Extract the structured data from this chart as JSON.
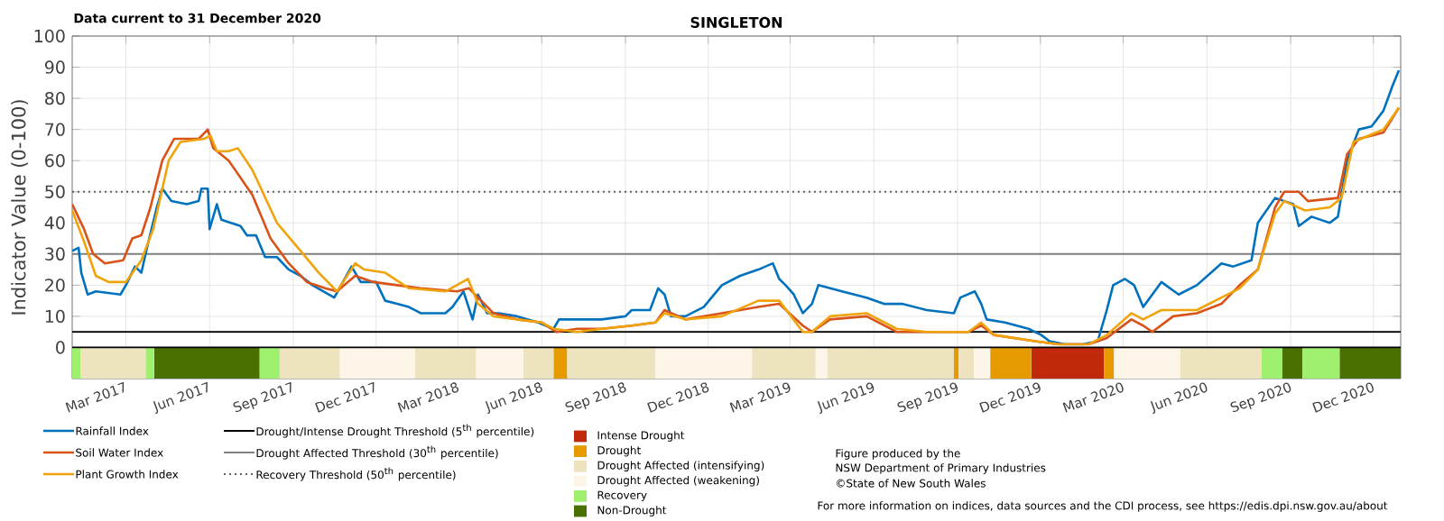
{
  "chart_data": {
    "type": "line",
    "title": "SINGLETON",
    "ylabel": "Indicator Value (0-100)",
    "xlim": [
      "2017-01-01",
      "2020-12-31"
    ],
    "ylim": [
      -10,
      100
    ],
    "xticks": [
      {
        "value": "2017-03-01",
        "label": "Mar 2017"
      },
      {
        "value": "2017-06-01",
        "label": "Jun 2017"
      },
      {
        "value": "2017-09-01",
        "label": "Sep 2017"
      },
      {
        "value": "2017-12-01",
        "label": "Dec 2017"
      },
      {
        "value": "2018-03-01",
        "label": "Mar 2018"
      },
      {
        "value": "2018-06-01",
        "label": "Jun 2018"
      },
      {
        "value": "2018-09-01",
        "label": "Sep 2018"
      },
      {
        "value": "2018-12-01",
        "label": "Dec 2018"
      },
      {
        "value": "2019-03-01",
        "label": "Mar 2019"
      },
      {
        "value": "2019-06-01",
        "label": "Jun 2019"
      },
      {
        "value": "2019-09-01",
        "label": "Sep 2019"
      },
      {
        "value": "2019-12-01",
        "label": "Dec 2019"
      },
      {
        "value": "2020-03-01",
        "label": "Mar 2020"
      },
      {
        "value": "2020-06-01",
        "label": "Jun 2020"
      },
      {
        "value": "2020-09-01",
        "label": "Sep 2020"
      },
      {
        "value": "2020-12-01",
        "label": "Dec 2020"
      }
    ],
    "yticks": [
      0,
      10,
      20,
      30,
      40,
      50,
      60,
      70,
      80,
      90,
      100
    ],
    "grid": true,
    "legend": "bottom",
    "marker": "none",
    "line_style": "solid",
    "series": [
      {
        "name": "Rainfall Index",
        "color": "#0072bd",
        "x": [
          "2017-01-01",
          "2017-01-08",
          "2017-01-11",
          "2017-01-18",
          "2017-01-27",
          "2017-02-23",
          "2017-03-01",
          "2017-03-11",
          "2017-03-18",
          "2017-03-25",
          "2017-04-04",
          "2017-04-10",
          "2017-04-20",
          "2017-05-07",
          "2017-05-20",
          "2017-05-23",
          "2017-05-30",
          "2017-06-01",
          "2017-06-09",
          "2017-06-14",
          "2017-07-05",
          "2017-07-12",
          "2017-07-22",
          "2017-08-01",
          "2017-08-14",
          "2017-08-27",
          "2017-09-09",
          "2017-09-22",
          "2017-10-16",
          "2017-11-04",
          "2017-11-14",
          "2017-12-01",
          "2017-12-11",
          "2017-12-24",
          "2018-01-06",
          "2018-01-19",
          "2018-02-15",
          "2018-02-23",
          "2018-03-07",
          "2018-03-17",
          "2018-03-23",
          "2018-04-02",
          "2018-04-15",
          "2018-05-05",
          "2018-05-28",
          "2018-06-14",
          "2018-06-20",
          "2018-07-10",
          "2018-08-06",
          "2018-09-01",
          "2018-09-08",
          "2018-09-28",
          "2018-10-07",
          "2018-10-14",
          "2018-10-21",
          "2018-11-06",
          "2018-11-26",
          "2018-12-16",
          "2019-01-05",
          "2019-01-25",
          "2019-02-10",
          "2019-02-17",
          "2019-02-24",
          "2019-03-05",
          "2019-03-15",
          "2019-03-25",
          "2019-04-01",
          "2019-04-27",
          "2019-05-24",
          "2019-06-12",
          "2019-07-02",
          "2019-07-29",
          "2019-08-28",
          "2019-09-04",
          "2019-09-20",
          "2019-09-27",
          "2019-10-03",
          "2019-10-23",
          "2019-11-18",
          "2019-12-02",
          "2019-12-11",
          "2019-12-28",
          "2020-01-17",
          "2020-02-02",
          "2020-02-12",
          "2020-02-19",
          "2020-03-03",
          "2020-03-13",
          "2020-03-23",
          "2020-04-12",
          "2020-05-01",
          "2020-05-21",
          "2020-06-17",
          "2020-06-30",
          "2020-07-20",
          "2020-07-27",
          "2020-08-15",
          "2020-09-04",
          "2020-09-10",
          "2020-09-24",
          "2020-10-14",
          "2020-10-23",
          "2020-11-02",
          "2020-11-15",
          "2020-11-29",
          "2020-12-12",
          "2020-12-22",
          "2020-12-29"
        ],
        "values": [
          31,
          32,
          24,
          17,
          18,
          17,
          20,
          26,
          24,
          33,
          45,
          51,
          47,
          46,
          47,
          51,
          51,
          38,
          46,
          41,
          39,
          36,
          36,
          29,
          29,
          25,
          23,
          20,
          16,
          26,
          21,
          21,
          15,
          14,
          13,
          11,
          11,
          13,
          18,
          9,
          17,
          11,
          11,
          10,
          8,
          6,
          9,
          9,
          9,
          10,
          12,
          12,
          19,
          17,
          10,
          10,
          13,
          20,
          23,
          25,
          27,
          22,
          20,
          17,
          11,
          14,
          20,
          18,
          16,
          14,
          14,
          12,
          11,
          16,
          18,
          14,
          9,
          8,
          6,
          4,
          2,
          1,
          1,
          2,
          12,
          20,
          22,
          20,
          13,
          21,
          17,
          20,
          27,
          26,
          28,
          40,
          48,
          46,
          39,
          42,
          40,
          42,
          60,
          70,
          71,
          76,
          84,
          89
        ]
      },
      {
        "name": "Soil Water Index",
        "color": "#d95319",
        "x": [
          "2017-01-01",
          "2017-01-14",
          "2017-01-24",
          "2017-02-06",
          "2017-02-26",
          "2017-03-08",
          "2017-03-18",
          "2017-03-28",
          "2017-04-10",
          "2017-04-23",
          "2017-05-20",
          "2017-05-30",
          "2017-06-05",
          "2017-06-22",
          "2017-07-18",
          "2017-08-07",
          "2017-08-27",
          "2017-09-16",
          "2017-10-06",
          "2017-10-19",
          "2017-11-08",
          "2017-11-28",
          "2017-12-24",
          "2018-01-19",
          "2018-02-28",
          "2018-03-13",
          "2018-03-23",
          "2018-04-09",
          "2018-05-05",
          "2018-06-01",
          "2018-06-17",
          "2018-07-10",
          "2018-08-06",
          "2018-09-08",
          "2018-10-04",
          "2018-10-14",
          "2018-11-06",
          "2018-12-16",
          "2019-01-25",
          "2019-02-17",
          "2019-03-15",
          "2019-03-25",
          "2019-04-14",
          "2019-05-24",
          "2019-06-26",
          "2019-07-29",
          "2019-09-13",
          "2019-09-27",
          "2019-10-11",
          "2019-11-25",
          "2019-12-21",
          "2020-01-23",
          "2020-02-12",
          "2020-03-10",
          "2020-03-23",
          "2020-04-02",
          "2020-04-25",
          "2020-05-21",
          "2020-06-17",
          "2020-07-07",
          "2020-07-27",
          "2020-08-15",
          "2020-08-25",
          "2020-09-10",
          "2020-09-20",
          "2020-10-23",
          "2020-11-02",
          "2020-11-15",
          "2020-12-12",
          "2020-12-29"
        ],
        "values": [
          46,
          38,
          30,
          27,
          28,
          35,
          36,
          45,
          60,
          67,
          67,
          70,
          64,
          60,
          49,
          35,
          27,
          21,
          19,
          18,
          23,
          21,
          20,
          19,
          18,
          19,
          16,
          11,
          9,
          8,
          5,
          6,
          6,
          7,
          8,
          12,
          9,
          11,
          13,
          14,
          7,
          5,
          9,
          10,
          5,
          5,
          5,
          7,
          4,
          2,
          1,
          1,
          3,
          9,
          7,
          5,
          10,
          11,
          14,
          20,
          25,
          45,
          50,
          50,
          47,
          48,
          62,
          67,
          69,
          77
        ]
      },
      {
        "name": "Plant Growth Index",
        "color": "#f0a30a",
        "x": [
          "2017-01-01",
          "2017-01-14",
          "2017-01-27",
          "2017-02-10",
          "2017-03-01",
          "2017-03-18",
          "2017-03-31",
          "2017-04-17",
          "2017-04-30",
          "2017-05-26",
          "2017-06-02",
          "2017-06-09",
          "2017-06-22",
          "2017-07-02",
          "2017-07-18",
          "2017-08-14",
          "2017-09-09",
          "2017-09-29",
          "2017-10-19",
          "2017-11-08",
          "2017-11-18",
          "2017-12-11",
          "2018-01-06",
          "2018-02-15",
          "2018-03-12",
          "2018-03-23",
          "2018-04-09",
          "2018-05-05",
          "2018-06-01",
          "2018-06-14",
          "2018-07-10",
          "2018-08-06",
          "2018-09-08",
          "2018-10-04",
          "2018-10-14",
          "2018-11-06",
          "2018-12-16",
          "2019-01-25",
          "2019-02-17",
          "2019-03-15",
          "2019-03-25",
          "2019-04-14",
          "2019-05-24",
          "2019-06-26",
          "2019-07-29",
          "2019-09-13",
          "2019-09-27",
          "2019-10-11",
          "2019-11-25",
          "2019-12-21",
          "2020-01-23",
          "2020-02-12",
          "2020-03-10",
          "2020-03-23",
          "2020-04-12",
          "2020-05-21",
          "2020-06-17",
          "2020-07-07",
          "2020-07-27",
          "2020-08-15",
          "2020-08-25",
          "2020-09-17",
          "2020-10-14",
          "2020-10-27",
          "2020-11-09",
          "2020-12-12",
          "2020-12-29"
        ],
        "values": [
          44,
          34,
          23,
          21,
          21,
          28,
          38,
          60,
          66,
          67,
          68,
          63,
          63,
          64,
          57,
          40,
          31,
          24,
          18,
          27,
          25,
          24,
          19,
          18,
          22,
          14,
          10,
          9,
          8,
          6,
          5,
          6,
          7,
          8,
          11,
          9,
          10,
          15,
          15,
          5,
          5,
          10,
          11,
          6,
          5,
          5,
          8,
          4,
          2,
          1,
          1,
          4,
          11,
          9,
          12,
          12,
          16,
          19,
          25,
          43,
          47,
          44,
          45,
          48,
          66,
          70,
          77
        ]
      }
    ],
    "ref_lines": [
      {
        "axis": "y",
        "value": 5,
        "label": "Drought/Intense Drought Threshold (5$^{th}$ percentile)",
        "color": "#000000",
        "line_style": "solid"
      },
      {
        "axis": "y",
        "value": 30,
        "label": "Drought Affected Threshold (30$^{th}$ percentile)",
        "color": "#808080",
        "line_style": "solid"
      },
      {
        "axis": "y",
        "value": 50,
        "label": "Recovery Threshold (50$^{th}$ percentile)",
        "color": "#606060",
        "line_style": "dotted"
      }
    ],
    "bands": [
      {
        "axis": "x",
        "from": "2019-11-21",
        "to": "2020-02-09",
        "label": "Intense Drought",
        "color": "#c0290a"
      },
      {
        "axis": "x",
        "from": "2018-06-14",
        "to": "2018-06-29",
        "label": "Drought",
        "color": "#e59a00"
      },
      {
        "axis": "x",
        "from": "2017-01-10",
        "to": "2017-03-23",
        "label": "Drought Affected (intensifying)",
        "color": "#ede3be"
      },
      {
        "axis": "x",
        "from": "2017-10-22",
        "to": "2018-01-13",
        "label": "Drought Affected (weakening)",
        "color": "#fdf6e8"
      },
      {
        "axis": "x",
        "from": "2017-01-01",
        "to": "2017-01-10",
        "label": "Recovery",
        "color": "#a0f070"
      },
      {
        "axis": "x",
        "from": "2017-04-01",
        "to": "2017-07-26",
        "label": "Non-Drought",
        "color": "#4a7000"
      },
      {
        "axis": "x",
        "from": "2017-03-23",
        "to": "2017-04-01",
        "color": "#a0f070"
      },
      {
        "axis": "x",
        "from": "2017-07-26",
        "to": "2017-08-17",
        "color": "#a0f070"
      },
      {
        "axis": "x",
        "from": "2017-08-17",
        "to": "2017-10-22",
        "color": "#ede3be"
      },
      {
        "axis": "x",
        "from": "2018-01-13",
        "to": "2018-03-21",
        "color": "#ede3be"
      },
      {
        "axis": "x",
        "from": "2018-03-21",
        "to": "2018-05-12",
        "color": "#fdf6e8"
      },
      {
        "axis": "x",
        "from": "2018-05-12",
        "to": "2018-06-14",
        "color": "#ede3be"
      },
      {
        "axis": "x",
        "from": "2018-06-29",
        "to": "2018-10-04",
        "color": "#ede3be"
      },
      {
        "axis": "x",
        "from": "2018-10-04",
        "to": "2019-01-18",
        "color": "#fdf6e8"
      },
      {
        "axis": "x",
        "from": "2019-01-18",
        "to": "2019-03-29",
        "color": "#ede3be"
      },
      {
        "axis": "x",
        "from": "2019-03-29",
        "to": "2019-04-11",
        "color": "#fdf6e8"
      },
      {
        "axis": "x",
        "from": "2019-04-11",
        "to": "2019-08-28",
        "color": "#ede3be"
      },
      {
        "axis": "x",
        "from": "2019-08-28",
        "to": "2019-09-02",
        "color": "#e59a00"
      },
      {
        "axis": "x",
        "from": "2019-09-02",
        "to": "2019-09-19",
        "color": "#ede3be"
      },
      {
        "axis": "x",
        "from": "2019-09-19",
        "to": "2019-10-07",
        "color": "#fdf6e8"
      },
      {
        "axis": "x",
        "from": "2019-10-07",
        "to": "2019-11-21",
        "color": "#e59a00"
      },
      {
        "axis": "x",
        "from": "2020-02-09",
        "to": "2020-02-20",
        "color": "#e59a00"
      },
      {
        "axis": "x",
        "from": "2020-02-20",
        "to": "2020-05-03",
        "color": "#fdf6e8"
      },
      {
        "axis": "x",
        "from": "2020-05-03",
        "to": "2020-07-31",
        "color": "#ede3be"
      },
      {
        "axis": "x",
        "from": "2020-07-31",
        "to": "2020-08-23",
        "color": "#a0f070"
      },
      {
        "axis": "x",
        "from": "2020-08-23",
        "to": "2020-09-14",
        "color": "#4a7000"
      },
      {
        "axis": "x",
        "from": "2020-09-14",
        "to": "2020-10-25",
        "color": "#a0f070"
      },
      {
        "axis": "x",
        "from": "2020-10-25",
        "to": "2020-12-31",
        "color": "#4a7000"
      }
    ],
    "annotations": [
      "Data current to 31 December 2020",
      "Figure produced by the",
      "NSW Department of Primary Industries",
      "©State of New South Wales",
      "For more information on indices, data sources and the CDI process, see https://edis.dpi.nsw.gov.au/about"
    ]
  }
}
